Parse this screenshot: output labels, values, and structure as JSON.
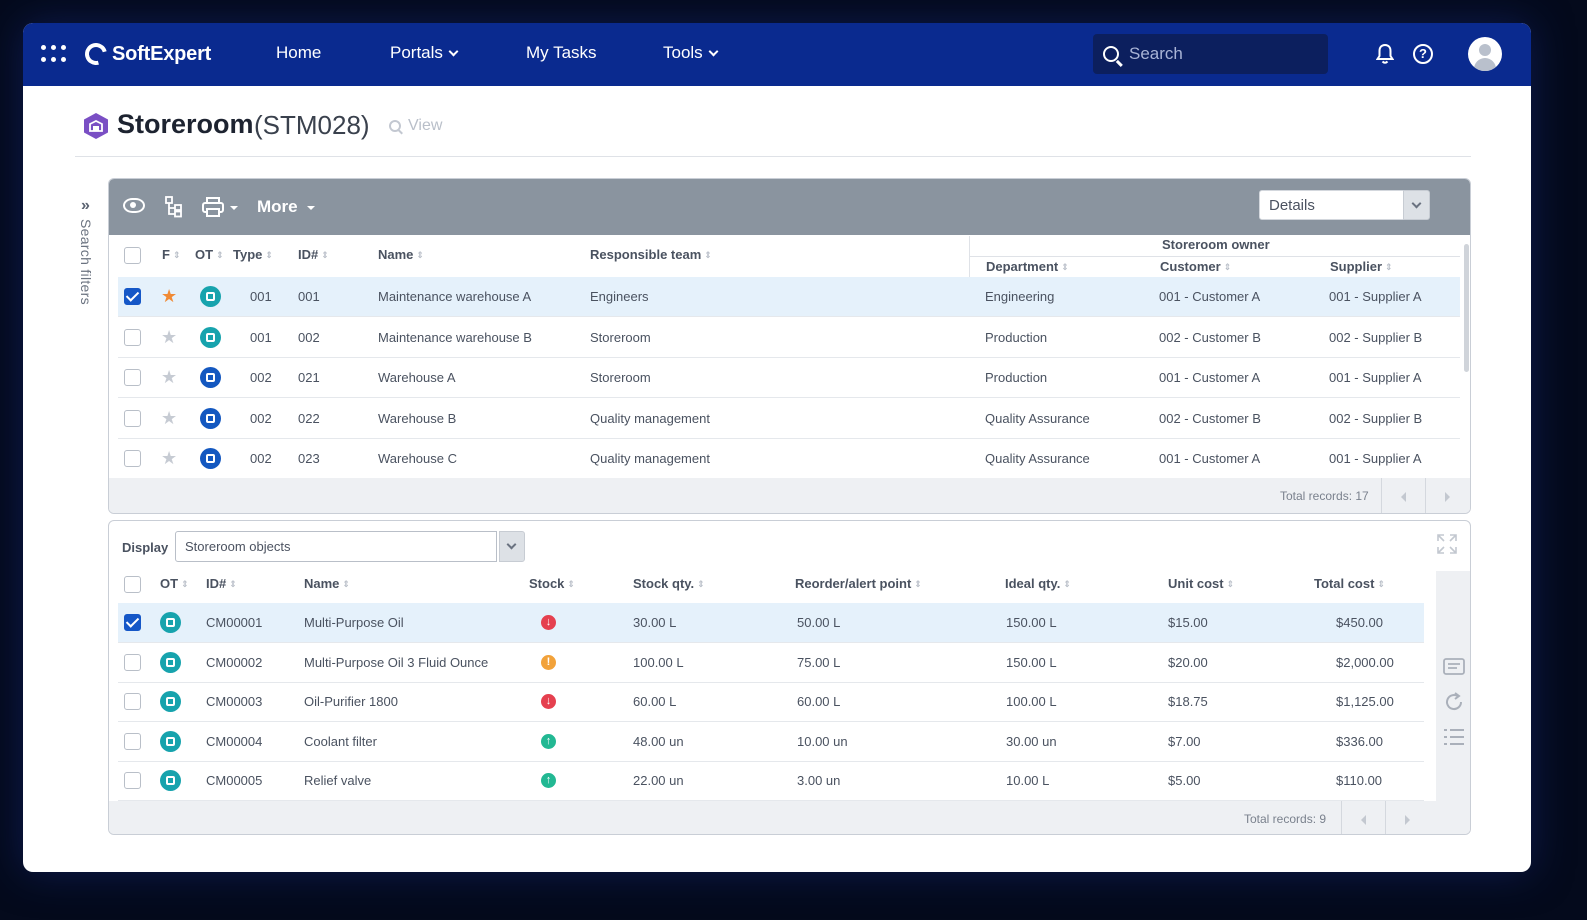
{
  "nav": {
    "brand": "SoftExpert",
    "items": [
      {
        "label": "Home",
        "dropdown": false
      },
      {
        "label": "Portals",
        "dropdown": true
      },
      {
        "label": "My Tasks",
        "dropdown": false
      },
      {
        "label": "Tools",
        "dropdown": true
      }
    ],
    "search_placeholder": "Search"
  },
  "page": {
    "title": "Storeroom",
    "code": "(STM028)",
    "view_label": "View",
    "search_filters_label": "Search filters"
  },
  "grid1": {
    "toolbar": {
      "more_label": "More",
      "view_mode": "Details"
    },
    "columns": {
      "f": "F",
      "ot": "OT",
      "type": "Type",
      "id": "ID#",
      "name": "Name",
      "team": "Responsible team"
    },
    "group_header": "Storeroom owner",
    "group_columns": {
      "department": "Department",
      "customer": "Customer",
      "supplier": "Supplier"
    },
    "rows": [
      {
        "selected": true,
        "favorite": true,
        "ot": "teal",
        "type": "001",
        "id": "001",
        "name": "Maintenance warehouse A",
        "team": "Engineers",
        "department": "Engineering",
        "customer": "001 - Customer A",
        "supplier": "001 - Supplier A"
      },
      {
        "selected": false,
        "favorite": false,
        "ot": "teal",
        "type": "001",
        "id": "002",
        "name": "Maintenance warehouse B",
        "team": "Storeroom",
        "department": "Production",
        "customer": "002 - Customer B",
        "supplier": "002 - Supplier B"
      },
      {
        "selected": false,
        "favorite": false,
        "ot": "blue",
        "type": "002",
        "id": "021",
        "name": "Warehouse A",
        "team": "Storeroom",
        "department": "Production",
        "customer": "001 - Customer A",
        "supplier": "001 - Supplier A"
      },
      {
        "selected": false,
        "favorite": false,
        "ot": "blue",
        "type": "002",
        "id": "022",
        "name": "Warehouse B",
        "team": "Quality management",
        "department": "Quality Assurance",
        "customer": "002 - Customer B",
        "supplier": "002 - Supplier B"
      },
      {
        "selected": false,
        "favorite": false,
        "ot": "blue",
        "type": "002",
        "id": "023",
        "name": "Warehouse C",
        "team": "Quality management",
        "department": "Quality Assurance",
        "customer": "001 - Customer A",
        "supplier": "001 - Supplier A"
      }
    ],
    "total_records": "Total records: 17"
  },
  "grid2": {
    "display_label": "Display",
    "display_value": "Storeroom objects",
    "columns": {
      "ot": "OT",
      "id": "ID#",
      "name": "Name",
      "stock": "Stock",
      "stock_qty": "Stock qty.",
      "reorder": "Reorder/alert point",
      "ideal": "Ideal qty.",
      "unit_cost": "Unit cost",
      "total_cost": "Total cost"
    },
    "rows": [
      {
        "selected": true,
        "id": "CM00001",
        "name": "Multi-Purpose Oil",
        "stock": "down",
        "stock_qty": "30.00 L",
        "reorder": "50.00 L",
        "ideal": "150.00 L",
        "unit_cost": "$15.00",
        "total_cost": "$450.00"
      },
      {
        "selected": false,
        "id": "CM00002",
        "name": "Multi-Purpose Oil 3 Fluid Ounce",
        "stock": "warn",
        "stock_qty": "100.00 L",
        "reorder": "75.00 L",
        "ideal": "150.00 L",
        "unit_cost": "$20.00",
        "total_cost": "$2,000.00"
      },
      {
        "selected": false,
        "id": "CM00003",
        "name": "Oil-Purifier 1800",
        "stock": "down",
        "stock_qty": "60.00 L",
        "reorder": "60.00 L",
        "ideal": "100.00 L",
        "unit_cost": "$18.75",
        "total_cost": "$1,125.00"
      },
      {
        "selected": false,
        "id": "CM00004",
        "name": "Coolant filter",
        "stock": "up",
        "stock_qty": "48.00 un",
        "reorder": "10.00 un",
        "ideal": "30.00 un",
        "unit_cost": "$7.00",
        "total_cost": "$336.00"
      },
      {
        "selected": false,
        "id": "CM00005",
        "name": "Relief valve",
        "stock": "up",
        "stock_qty": "22.00 un",
        "reorder": "3.00 un",
        "ideal": "10.00 L",
        "unit_cost": "$5.00",
        "total_cost": "$110.00"
      }
    ],
    "total_records": "Total records: 9"
  },
  "colors": {
    "nav_bg": "#0a2a8f",
    "toolbar_bg": "#8a949f",
    "selected_row": "#e5f1fb",
    "checkbox": "#1557c7",
    "favorite": "#f08a35",
    "ot_teal": "#17a3ad",
    "ot_blue": "#1458c0"
  }
}
